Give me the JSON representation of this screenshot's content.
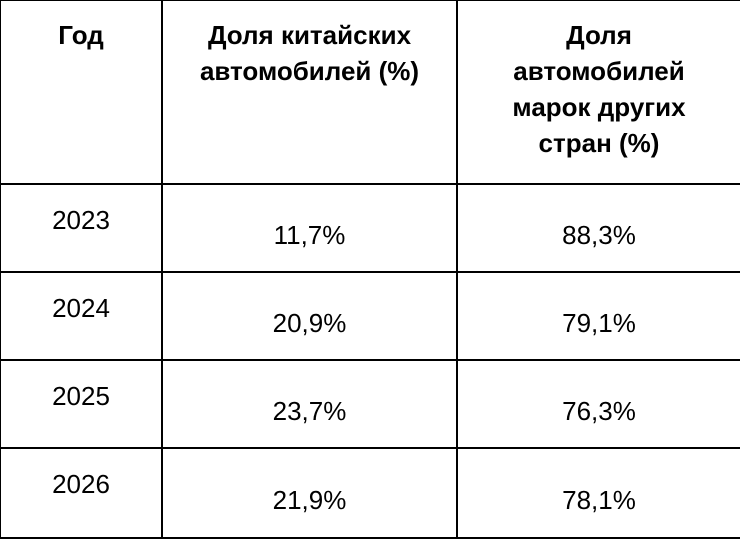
{
  "table": {
    "header": [
      "Год",
      "Доля китайских автомобилей (%)",
      "Доля автомобилей марок других стран (%)"
    ],
    "rows": [
      [
        "2023",
        "11,7%",
        "88,3%"
      ],
      [
        "2024",
        "20,9%",
        "79,1%"
      ],
      [
        "2025",
        "23,7%",
        "76,3%"
      ],
      [
        "2026",
        "21,9%",
        "78,1%"
      ]
    ]
  }
}
